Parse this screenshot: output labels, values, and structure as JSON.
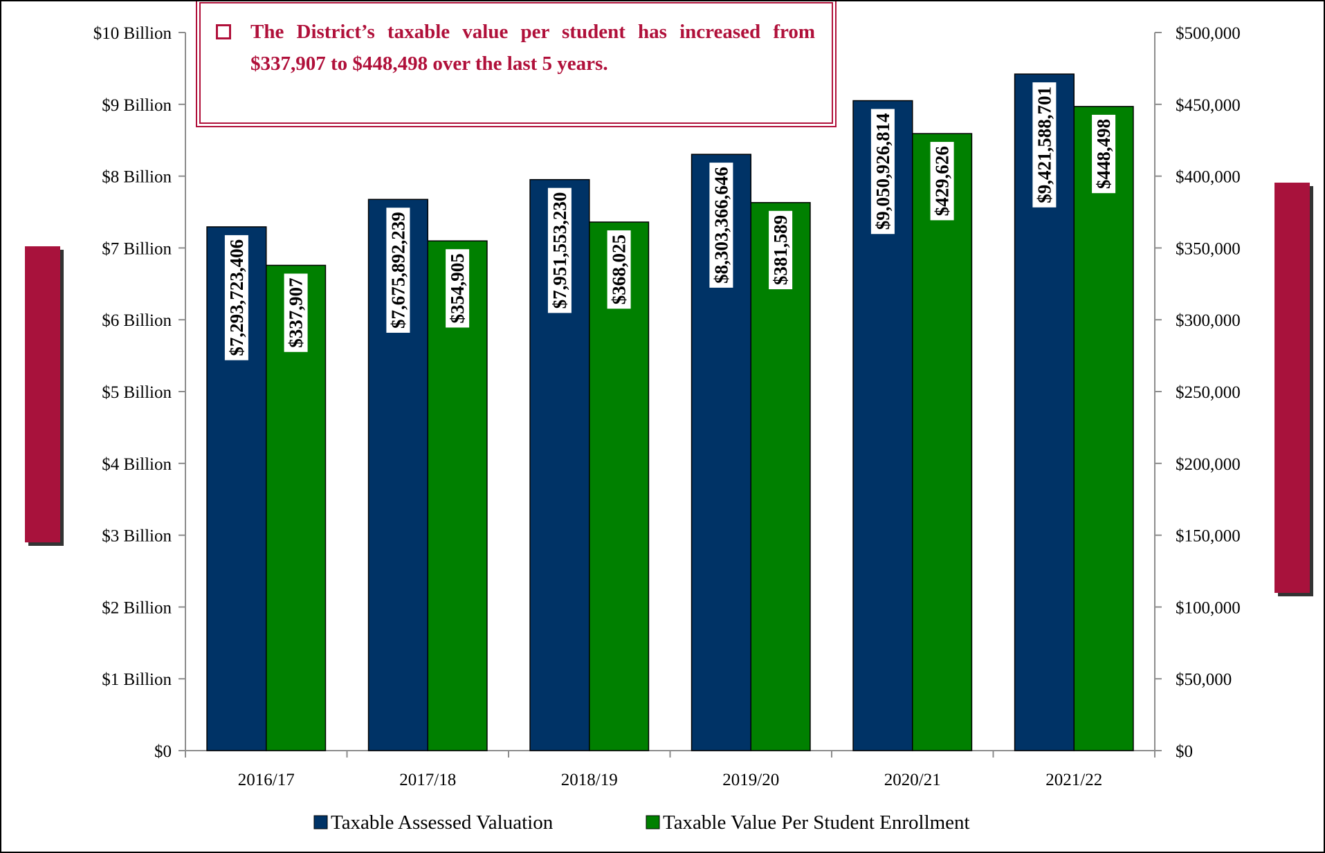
{
  "chart_data": {
    "type": "bar",
    "annotation": "The District’s taxable value per student has increased from $337,907 to $448,498 over the last 5 years.",
    "y_label": "Taxable Assessed Valuation",
    "y2_label": "Taxable Value Per Student Enrollment",
    "categories": [
      "2016/17",
      "2017/18",
      "2018/19",
      "2019/20",
      "2020/21",
      "2021/22"
    ],
    "series": [
      {
        "name": "Taxable Assessed Valuation",
        "color": "#003366",
        "values": [
          7293723406,
          7675892239,
          7951553230,
          8303366646,
          9050926814,
          9421588701
        ],
        "value_labels": [
          "$7,293,723,406",
          "$7,675,892,239",
          "$7,951,553,230",
          "$8,303,366,646",
          "$9,050,926,814",
          "$9,421,588,701"
        ]
      },
      {
        "name": "Taxable Value Per Student Enrollment",
        "color": "#008000",
        "axis": "y2",
        "values": [
          337907,
          354905,
          368025,
          381589,
          429626,
          448498
        ],
        "value_labels": [
          "$337,907",
          "$354,905",
          "$368,025",
          "$381,589",
          "$429,626",
          "$448,498"
        ]
      }
    ],
    "ylim": [
      0,
      10000000000
    ],
    "yticks": [
      {
        "value": 0,
        "label": "$0"
      },
      {
        "value": 1000000000,
        "label": "$1 Billion"
      },
      {
        "value": 2000000000,
        "label": "$2 Billion"
      },
      {
        "value": 3000000000,
        "label": "$3 Billion"
      },
      {
        "value": 4000000000,
        "label": "$4 Billion"
      },
      {
        "value": 5000000000,
        "label": "$5 Billion"
      },
      {
        "value": 6000000000,
        "label": "$6 Billion"
      },
      {
        "value": 7000000000,
        "label": "$7 Billion"
      },
      {
        "value": 8000000000,
        "label": "$8 Billion"
      },
      {
        "value": 9000000000,
        "label": "$9 Billion"
      },
      {
        "value": 10000000000,
        "label": "$10 Billion"
      }
    ],
    "y2lim": [
      0,
      500000
    ],
    "y2ticks": [
      {
        "value": 0,
        "label": "$0"
      },
      {
        "value": 50000,
        "label": "$50,000"
      },
      {
        "value": 100000,
        "label": "$100,000"
      },
      {
        "value": 150000,
        "label": "$150,000"
      },
      {
        "value": 200000,
        "label": "$200,000"
      },
      {
        "value": 250000,
        "label": "$250,000"
      },
      {
        "value": 300000,
        "label": "$300,000"
      },
      {
        "value": 350000,
        "label": "$350,000"
      },
      {
        "value": 400000,
        "label": "$400,000"
      },
      {
        "value": 450000,
        "label": "$450,000"
      },
      {
        "value": 500000,
        "label": "$500,000"
      }
    ],
    "grid": false,
    "legend": "bottom"
  }
}
